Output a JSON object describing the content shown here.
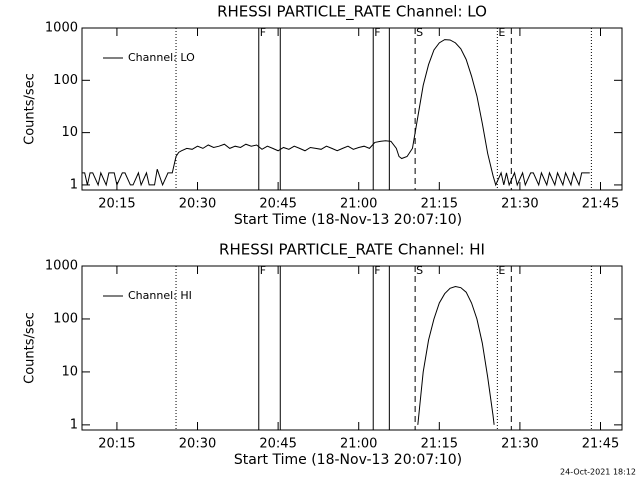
{
  "chart_data": [
    {
      "type": "line",
      "title": "RHESSI PARTICLE_RATE Channel: LO",
      "x_label": "Start Time (18-Nov-13 20:07:10)",
      "y_label": "Counts/sec",
      "log_y": true,
      "xlim": [
        8.5,
        109
      ],
      "ylim": [
        0.8,
        1000
      ],
      "xticks": [
        {
          "value": 15,
          "label": "20:15"
        },
        {
          "value": 30,
          "label": "20:30"
        },
        {
          "value": 45,
          "label": "20:45"
        },
        {
          "value": 60,
          "label": "21:00"
        },
        {
          "value": 75,
          "label": "21:15"
        },
        {
          "value": 90,
          "label": "21:30"
        },
        {
          "value": 105,
          "label": "21:45"
        }
      ],
      "yticks": [
        1,
        10,
        100,
        1000
      ],
      "markers": [
        {
          "x": 26.0,
          "style": "dotted"
        },
        {
          "x": 41.4,
          "style": "solid",
          "label": "F"
        },
        {
          "x": 45.4,
          "style": "solid"
        },
        {
          "x": 62.7,
          "style": "solid",
          "label": "F"
        },
        {
          "x": 65.7,
          "style": "solid"
        },
        {
          "x": 70.5,
          "style": "dashed",
          "label": "S"
        },
        {
          "x": 85.8,
          "style": "dotted",
          "label": "E"
        },
        {
          "x": 88.4,
          "style": "dashed"
        },
        {
          "x": 103.3,
          "style": "dotted"
        }
      ],
      "series": [
        {
          "name": "Channel: LO",
          "color": "#000000",
          "x": [
            8.5,
            9,
            9.5,
            10,
            10.5,
            11.5,
            12,
            13,
            13.5,
            14.5,
            15,
            16,
            16.5,
            17.5,
            18,
            19,
            19.5,
            20.5,
            21,
            22,
            22.5,
            23.5,
            24.5,
            25.3,
            26,
            26.5,
            27,
            28,
            29,
            30,
            31,
            32,
            33,
            34,
            35,
            36,
            37,
            38,
            39,
            40,
            41,
            42,
            43,
            44,
            45,
            46,
            47,
            48,
            49,
            50,
            51,
            52,
            53,
            54,
            55,
            56,
            57,
            58,
            59,
            60,
            61,
            62,
            63,
            64,
            65,
            66,
            67,
            67.5,
            68,
            69,
            70,
            71,
            72,
            73,
            74,
            75,
            76,
            77,
            78,
            79,
            80,
            81,
            82,
            83,
            84,
            85,
            85.5,
            86.5,
            87,
            87.5,
            88,
            89,
            89.5,
            90.5,
            91,
            92,
            92.5,
            93.5,
            94,
            95,
            95.5,
            96.5,
            97,
            98,
            98.5,
            99.5,
            100,
            101,
            101.5,
            102.5,
            103
          ],
          "values": [
            1.7,
            1.7,
            1,
            1.7,
            1.7,
            1,
            1.7,
            1,
            1.7,
            1.7,
            1,
            1.7,
            1.7,
            1,
            1,
            1.7,
            1,
            1.7,
            1,
            1,
            2,
            1,
            1.7,
            1.7,
            3.5,
            4.2,
            4.5,
            5,
            4.8,
            5.5,
            5,
            5.8,
            5.2,
            5.5,
            6,
            5,
            5.5,
            5.2,
            6,
            5.5,
            5.8,
            4.8,
            5.5,
            5,
            4.5,
            5.2,
            4.8,
            5.5,
            5,
            4.5,
            5.2,
            5,
            4.8,
            5.5,
            5,
            4.5,
            5,
            5.5,
            4.8,
            5.2,
            5.5,
            5,
            6.5,
            6.8,
            7,
            6.8,
            5,
            3.5,
            3.2,
            3.5,
            5,
            20,
            80,
            200,
            380,
            520,
            600,
            590,
            520,
            400,
            250,
            120,
            50,
            15,
            4,
            1.5,
            1,
            1.7,
            1,
            1.7,
            1,
            1.7,
            1,
            1.7,
            1,
            1.7,
            1.7,
            1,
            1.7,
            1,
            1.7,
            1,
            1.7,
            1,
            1.7,
            1,
            1.7,
            1,
            1.7,
            1.7,
            1.7
          ]
        }
      ]
    },
    {
      "type": "line",
      "title": "RHESSI PARTICLE_RATE Channel: HI",
      "x_label": "Start Time (18-Nov-13 20:07:10)",
      "y_label": "Counts/sec",
      "log_y": true,
      "xlim": [
        8.5,
        109
      ],
      "ylim": [
        0.8,
        1000
      ],
      "xticks": [
        {
          "value": 15,
          "label": "20:15"
        },
        {
          "value": 30,
          "label": "20:30"
        },
        {
          "value": 45,
          "label": "20:45"
        },
        {
          "value": 60,
          "label": "21:00"
        },
        {
          "value": 75,
          "label": "21:15"
        },
        {
          "value": 90,
          "label": "21:30"
        },
        {
          "value": 105,
          "label": "21:45"
        }
      ],
      "yticks": [
        1,
        10,
        100,
        1000
      ],
      "markers": [
        {
          "x": 26.0,
          "style": "dotted"
        },
        {
          "x": 41.4,
          "style": "solid",
          "label": "F"
        },
        {
          "x": 45.4,
          "style": "solid"
        },
        {
          "x": 62.7,
          "style": "solid",
          "label": "F"
        },
        {
          "x": 65.7,
          "style": "solid"
        },
        {
          "x": 70.5,
          "style": "dashed",
          "label": "S"
        },
        {
          "x": 85.8,
          "style": "dotted",
          "label": "E"
        },
        {
          "x": 88.4,
          "style": "dashed"
        },
        {
          "x": 103.3,
          "style": "dotted"
        }
      ],
      "series": [
        {
          "name": "Channel: HI",
          "color": "#000000",
          "x": [
            71,
            72,
            73,
            74,
            75,
            76,
            77,
            78,
            79,
            80,
            81,
            82,
            83,
            84,
            85,
            85.2
          ],
          "values": [
            1,
            10,
            40,
            100,
            200,
            300,
            380,
            410,
            390,
            320,
            200,
            100,
            35,
            8,
            1.5,
            1
          ]
        }
      ]
    }
  ],
  "footer": "24-Oct-2021 18:12"
}
